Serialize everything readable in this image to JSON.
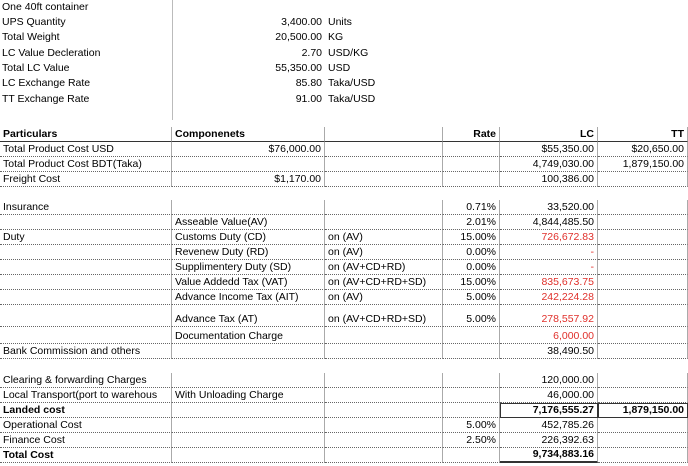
{
  "info": {
    "title": "One 40ft  container",
    "rows": [
      {
        "label": "UPS Quantity",
        "value": "3,400.00",
        "unit": "Units"
      },
      {
        "label": "Total Weight",
        "value": "20,500.00",
        "unit": "KG"
      },
      {
        "label": "LC Value Decleration",
        "value": "2.70",
        "unit": "USD/KG"
      },
      {
        "label": "Total LC Value",
        "value": "55,350.00",
        "unit": "USD"
      },
      {
        "label": "LC Exchange Rate",
        "value": "85.80",
        "unit": "Taka/USD"
      },
      {
        "label": "TT Exchange Rate",
        "value": "91.00",
        "unit": "Taka/USD"
      }
    ]
  },
  "table": {
    "rows": [
      [
        "Particulars",
        "Componenets",
        null,
        "Rate",
        "LC",
        "TT"
      ],
      [
        "Total Product Cost USD",
        "$76,000.00",
        null,
        null,
        "$55,350.00",
        "$20,650.00"
      ],
      [
        "Total Product Cost BDT(Taka)",
        null,
        null,
        null,
        "4,749,030.00",
        "1,879,150.00"
      ],
      [
        "Freight Cost",
        "$1,170.00",
        null,
        null,
        "100,386.00",
        null
      ],
      [
        "Insurance",
        null,
        null,
        "0.71%",
        "33,520.00",
        null
      ],
      [
        null,
        "Asseable Value(AV)",
        null,
        "2.01%",
        "4,844,485.50",
        null
      ],
      [
        "Duty",
        "Customs Duty (CD)",
        "on (AV)",
        "15.00%",
        "726,672.83",
        null
      ],
      [
        null,
        "Revenew Duty (RD)",
        "on (AV)",
        "0.00%",
        "-",
        null
      ],
      [
        null,
        "Supplimentery Duty (SD)",
        "on (AV+CD+RD)",
        "0.00%",
        "-",
        null
      ],
      [
        null,
        "Value Addedd Tax (VAT)",
        "on (AV+CD+RD+SD)",
        "15.00%",
        "835,673.75",
        null
      ],
      [
        null,
        "Advance Income Tax (AIT)",
        "on (AV)",
        "5.00%",
        "242,224.28",
        null
      ],
      [
        null,
        "Advance Tax (AT)",
        "on (AV+CD+RD+SD)",
        "5.00%",
        "278,557.92",
        null
      ],
      [
        null,
        "Documentation Charge",
        null,
        null,
        "6,000.00",
        null
      ],
      [
        "Bank Commission and others",
        null,
        null,
        null,
        "38,490.50",
        null
      ],
      [
        "Clearing & forwarding Charges",
        null,
        null,
        null,
        "120,000.00",
        null
      ],
      [
        "Local Transport(port to warehous",
        "With Unloading Charge",
        null,
        null,
        "46,000.00",
        null
      ],
      [
        "Landed cost",
        null,
        null,
        null,
        "7,176,555.27",
        "1,879,150.00"
      ],
      [
        "Operational Cost",
        null,
        null,
        "5.00%",
        "452,785.26",
        null
      ],
      [
        "Finance Cost",
        null,
        null,
        "2.50%",
        "226,392.63",
        null
      ],
      [
        "Total Cost",
        null,
        null,
        null,
        "9,734,883.16",
        null
      ]
    ]
  }
}
